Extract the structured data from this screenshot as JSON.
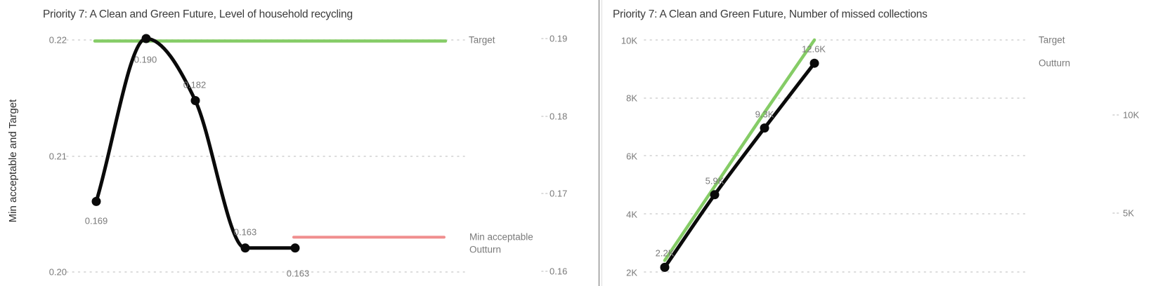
{
  "colors": {
    "background": "#ffffff",
    "title_text": "#3b3b3b",
    "axis_text": "#7a7a7a",
    "grid": "#d0d0d0",
    "target_green": "#85CC66",
    "min_acceptable_red": "#F08E8E",
    "outturn_black": "#0a0a0a"
  },
  "chart_data": [
    {
      "type": "line",
      "title": "Priority 7: A Clean and Green Future, Level of household recycling",
      "left_axis_title": "Min acceptable and Target",
      "left_axis_ticks": [
        "0.22",
        "0.21",
        "0.20"
      ],
      "left_axis_range": [
        0.2,
        0.22
      ],
      "right_axis_ticks": [
        "0.19",
        "0.18",
        "0.17",
        "0.16"
      ],
      "right_axis_range": [
        0.16,
        0.19
      ],
      "x_axis_labels": [],
      "grid": "dotted-horizontal",
      "series": [
        {
          "name": "Target",
          "axis": "left",
          "color": "#85CC66",
          "kind": "constant-line",
          "value": 0.22
        },
        {
          "name": "Min acceptable",
          "axis": "left",
          "color": "#F08E8E",
          "kind": "constant-line",
          "value_estimate": 0.203
        },
        {
          "name": "Outturn",
          "axis": "right",
          "color": "#0a0a0a",
          "kind": "line",
          "values": [
            0.169,
            0.19,
            0.182,
            0.163,
            0.163
          ],
          "data_labels": [
            "0.169",
            "0.190",
            "0.182",
            "0.163",
            "0.163"
          ]
        }
      ]
    },
    {
      "type": "line",
      "title": "Priority 7: A Clean and Green Future, Number of missed collections",
      "left_axis_ticks": [
        "10K",
        "8K",
        "6K",
        "4K",
        "2K"
      ],
      "left_axis_range": [
        2000,
        10000
      ],
      "right_axis_ticks": [
        "10K",
        "5K"
      ],
      "x_axis_labels": [],
      "grid": "dotted-horizontal",
      "series": [
        {
          "name": "Target",
          "axis": "left",
          "color": "#85CC66",
          "kind": "line",
          "values_estimate": [
            2400,
            4950,
            7500,
            10000
          ]
        },
        {
          "name": "Outturn",
          "axis": "right",
          "color": "#0a0a0a",
          "kind": "line",
          "values": [
            2200,
            5900,
            9300,
            12600
          ],
          "data_labels": [
            "2.2K",
            "5.9K",
            "9.3K",
            "12.6K"
          ]
        }
      ]
    }
  ]
}
